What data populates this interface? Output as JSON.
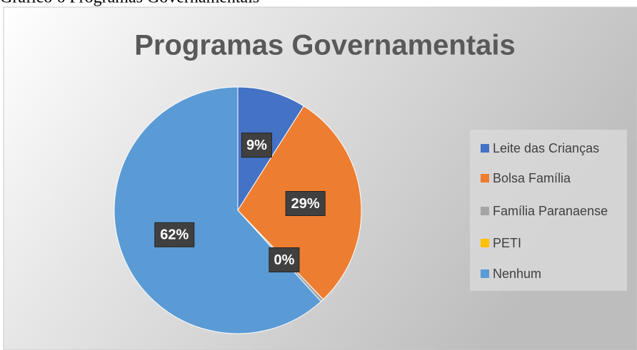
{
  "caption": "Gráfico 6 Programas Governamentais",
  "chart_data": {
    "type": "pie",
    "title": "Programas Governamentais",
    "categories": [
      "Leite das Crianças",
      "Bolsa Família",
      "Família Paranaense",
      "PETI",
      "Nenhum"
    ],
    "values": [
      9,
      29,
      0.4,
      0,
      62
    ],
    "value_labels": [
      "9%",
      "29%",
      "0%",
      null,
      "62%"
    ],
    "colors": [
      "#4472c4",
      "#ed7d31",
      "#a5a5a5",
      "#ffc000",
      "#5b9bd5"
    ],
    "legend": "right"
  }
}
